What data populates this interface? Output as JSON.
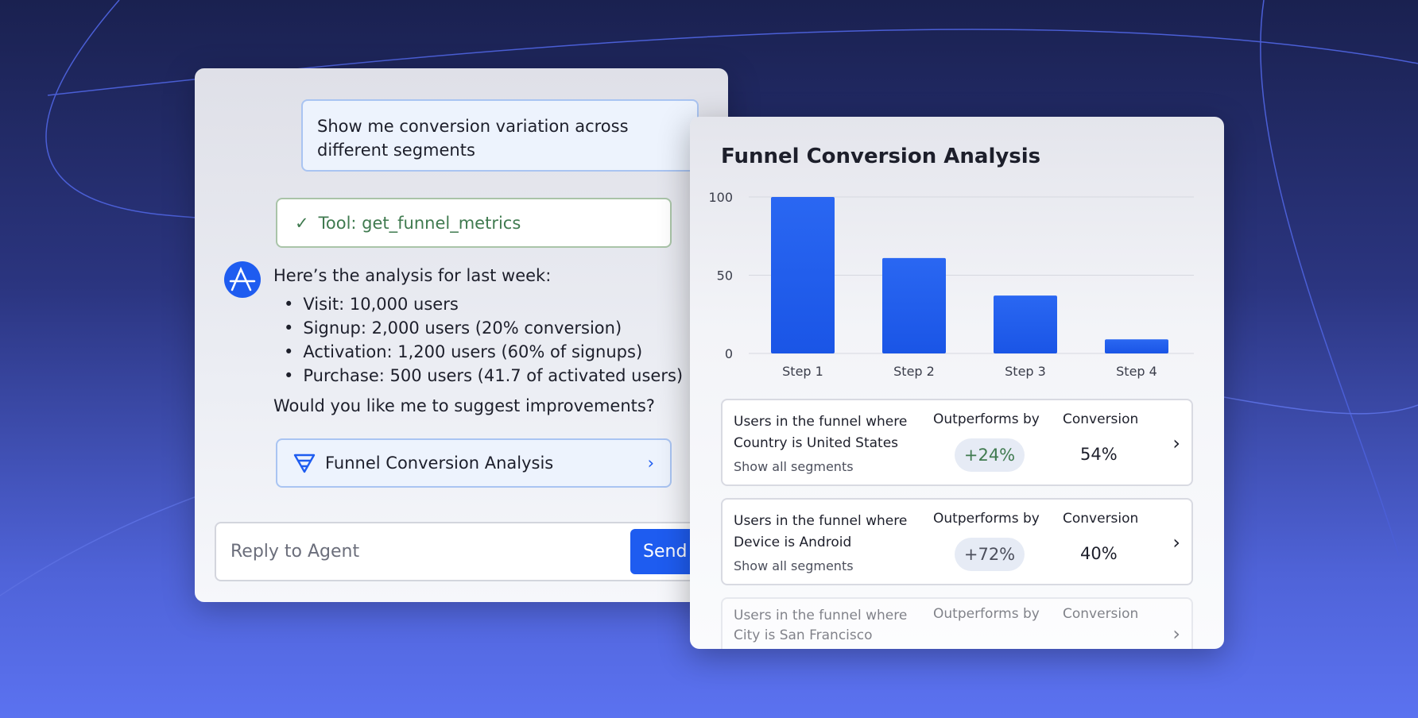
{
  "chat": {
    "user_message": "Show me conversion variation across different segments",
    "tool_label": "Tool: get_funnel_metrics",
    "agent_intro": "Here’s the analysis for last week:",
    "bullets": [
      "Visit: 10,000 users",
      "Signup: 2,000 users (20% conversion)",
      "Activation: 1,200 users (60% of signups)",
      "Purchase: 500 users (41.7 of activated users)"
    ],
    "agent_question": "Would you like me to suggest improvements?",
    "attachment_label": "Funnel Conversion Analysis",
    "reply_placeholder": "Reply to Agent",
    "send_label": "Send"
  },
  "analysis": {
    "title": "Funnel Conversion Analysis",
    "segments": [
      {
        "heading": "Users in the funnel where",
        "condition": "Country is United States",
        "link": "Show all segments",
        "outperforms_label": "Outperforms by",
        "outperforms": "+24%",
        "conversion_label": "Conversion",
        "conversion": "54%"
      },
      {
        "heading": "Users in the funnel where",
        "condition": "Device is Android",
        "link": "Show all segments",
        "outperforms_label": "Outperforms by",
        "outperforms": "+72%",
        "conversion_label": "Conversion",
        "conversion": "40%"
      },
      {
        "heading": "Users in the funnel where",
        "condition": "City is San Francisco",
        "outperforms_label": "Outperforms by",
        "conversion_label": "Conversion"
      }
    ]
  },
  "colors": {
    "accent": "#1e5cf0",
    "success": "#3f7a4f"
  },
  "chart_data": {
    "type": "bar",
    "categories": [
      "Step 1",
      "Step 2",
      "Step 3",
      "Step 4"
    ],
    "values": [
      100,
      61,
      37,
      9
    ],
    "yticks": [
      "0",
      "50",
      "100"
    ],
    "ylim": [
      0,
      100
    ],
    "grid": true
  }
}
